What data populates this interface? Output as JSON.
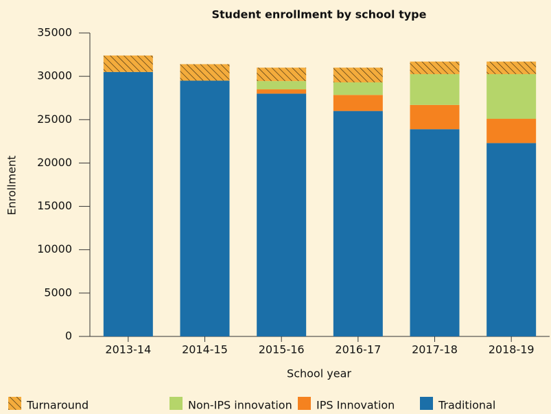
{
  "chart_data": {
    "type": "stacked_bar",
    "title": "Student enrollment by school type",
    "x_label": "School year",
    "y_label": "Enrollment",
    "categories": [
      "2013-14",
      "2014-15",
      "2015-16",
      "2016-17",
      "2017-18",
      "2018-19"
    ],
    "series": [
      {
        "name": "Traditional",
        "color": "#1b6fa8",
        "values": [
          30500,
          29500,
          28000,
          26000,
          23900,
          22300
        ]
      },
      {
        "name": "IPS Innovation",
        "color": "#f5821f",
        "values": [
          0,
          0,
          500,
          1850,
          2800,
          2800
        ]
      },
      {
        "name": "Non-IPS innovation",
        "color": "#b5d56a",
        "values": [
          0,
          0,
          950,
          1450,
          3550,
          5150
        ]
      },
      {
        "name": "Turnaround",
        "color": "#f4ac3c",
        "hatch": true,
        "values": [
          1900,
          1900,
          1550,
          1700,
          1450,
          1450
        ]
      }
    ],
    "ylim": [
      0,
      35000
    ],
    "yticks": [
      0,
      5000,
      10000,
      15000,
      20000,
      25000,
      30000,
      35000
    ],
    "legend": "bottom"
  }
}
